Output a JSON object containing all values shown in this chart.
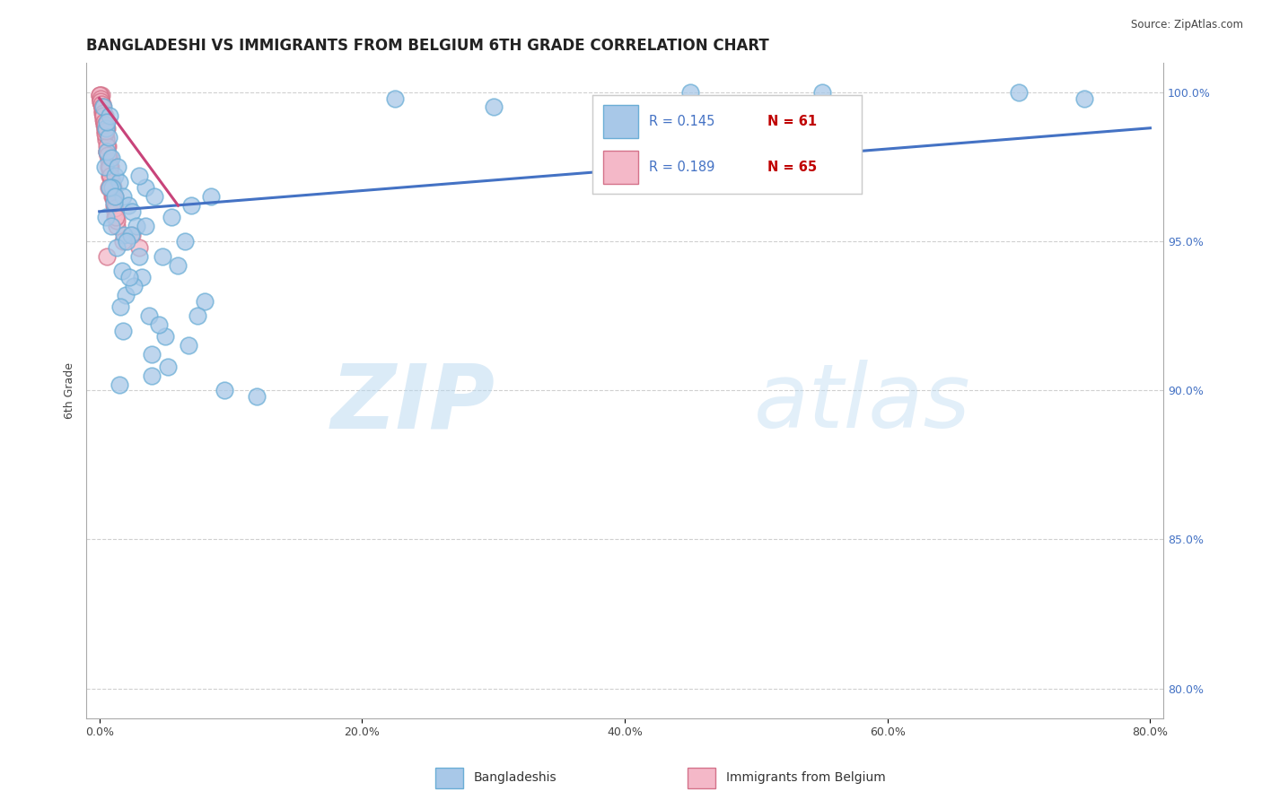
{
  "title": "BANGLADESHI VS IMMIGRANTS FROM BELGIUM 6TH GRADE CORRELATION CHART",
  "source": "Source: ZipAtlas.com",
  "ylabel": "6th Grade",
  "x_tick_labels": [
    "0.0%",
    "20.0%",
    "40.0%",
    "60.0%",
    "80.0%"
  ],
  "x_tick_values": [
    0,
    20,
    40,
    60,
    80
  ],
  "y_tick_labels": [
    "80.0%",
    "85.0%",
    "90.0%",
    "95.0%",
    "100.0%"
  ],
  "y_tick_values": [
    80,
    85,
    90,
    95,
    100
  ],
  "xlim": [
    -1,
    81
  ],
  "ylim": [
    79,
    101
  ],
  "legend_r_blue": "R = 0.145",
  "legend_n_blue": "N = 61",
  "legend_r_pink": "R = 0.189",
  "legend_n_pink": "N = 65",
  "legend_label_blue": "Bangladeshis",
  "legend_label_pink": "Immigrants from Belgium",
  "blue_scatter_x": [
    0.3,
    0.5,
    0.8,
    0.4,
    0.6,
    0.9,
    1.2,
    0.7,
    1.5,
    1.0,
    1.8,
    2.2,
    0.6,
    1.4,
    2.5,
    0.5,
    1.1,
    2.8,
    3.5,
    1.9,
    4.2,
    3.0,
    5.5,
    7.0,
    4.8,
    6.5,
    8.5,
    3.2,
    2.0,
    1.6,
    1.3,
    0.9,
    2.4,
    1.7,
    3.8,
    5.0,
    4.0,
    2.6,
    1.5,
    6.0,
    9.5,
    12.0,
    22.5,
    30.0,
    45.0,
    55.0,
    70.0,
    75.0,
    3.5,
    2.1,
    0.8,
    1.2,
    4.5,
    6.8,
    8.0,
    3.0,
    2.3,
    1.8,
    4.0,
    5.2,
    7.5
  ],
  "blue_scatter_y": [
    99.5,
    98.8,
    99.2,
    97.5,
    98.0,
    97.8,
    97.2,
    98.5,
    97.0,
    96.8,
    96.5,
    96.2,
    99.0,
    97.5,
    96.0,
    95.8,
    96.3,
    95.5,
    96.8,
    95.2,
    96.5,
    97.2,
    95.8,
    96.2,
    94.5,
    95.0,
    96.5,
    93.8,
    93.2,
    92.8,
    94.8,
    95.5,
    95.2,
    94.0,
    92.5,
    91.8,
    90.5,
    93.5,
    90.2,
    94.2,
    90.0,
    89.8,
    99.8,
    99.5,
    100.0,
    100.0,
    100.0,
    99.8,
    95.5,
    95.0,
    96.8,
    96.5,
    92.2,
    91.5,
    93.0,
    94.5,
    93.8,
    92.0,
    91.2,
    90.8,
    92.5
  ],
  "pink_scatter_x": [
    0.1,
    0.2,
    0.15,
    0.3,
    0.25,
    0.4,
    0.35,
    0.5,
    0.45,
    0.6,
    0.55,
    0.7,
    0.65,
    0.8,
    0.75,
    0.9,
    0.85,
    1.0,
    0.95,
    1.1,
    1.05,
    1.2,
    1.15,
    1.3,
    0.05,
    0.1,
    0.2,
    0.3,
    0.4,
    0.5,
    0.6,
    0.7,
    0.8,
    0.9,
    1.0,
    1.1,
    1.2,
    1.3,
    0.15,
    0.25,
    0.35,
    0.45,
    0.55,
    0.65,
    0.75,
    0.85,
    0.95,
    1.05,
    1.15,
    1.25,
    0.05,
    0.08,
    0.12,
    0.18,
    0.22,
    0.28,
    0.32,
    0.38,
    0.42,
    0.48,
    2.5,
    3.0,
    0.6,
    0.7,
    1.8
  ],
  "pink_scatter_y": [
    99.8,
    99.5,
    99.9,
    99.2,
    99.6,
    98.8,
    99.0,
    98.5,
    99.2,
    98.0,
    98.8,
    97.5,
    98.2,
    97.2,
    97.8,
    96.8,
    97.5,
    96.5,
    97.0,
    96.2,
    96.8,
    95.8,
    96.5,
    95.5,
    99.9,
    99.7,
    99.4,
    99.1,
    98.7,
    98.4,
    98.0,
    97.7,
    97.4,
    97.0,
    96.7,
    96.4,
    96.0,
    95.7,
    99.6,
    99.3,
    98.9,
    98.6,
    98.2,
    97.9,
    97.5,
    97.2,
    96.8,
    96.5,
    96.1,
    95.8,
    99.9,
    99.8,
    99.7,
    99.6,
    99.5,
    99.3,
    99.2,
    99.0,
    98.9,
    98.7,
    95.2,
    94.8,
    94.5,
    96.8,
    95.0
  ],
  "blue_line_x": [
    0,
    80
  ],
  "blue_line_y": [
    96.0,
    98.8
  ],
  "pink_line_x": [
    0,
    6
  ],
  "pink_line_y": [
    99.8,
    96.2
  ],
  "blue_color": "#a8c8e8",
  "blue_edge_color": "#6baed6",
  "pink_color": "#f4b8c8",
  "pink_edge_color": "#d4728a",
  "blue_line_color": "#4472c4",
  "pink_line_color": "#c8447a",
  "grid_color": "#d0d0d0",
  "watermark_zip": "ZIP",
  "watermark_atlas": "atlas",
  "title_fontsize": 12,
  "axis_label_fontsize": 9,
  "tick_fontsize": 9,
  "legend_r_color": "#4472c4",
  "legend_n_color": "#c00000",
  "y_tick_color": "#4472c4"
}
